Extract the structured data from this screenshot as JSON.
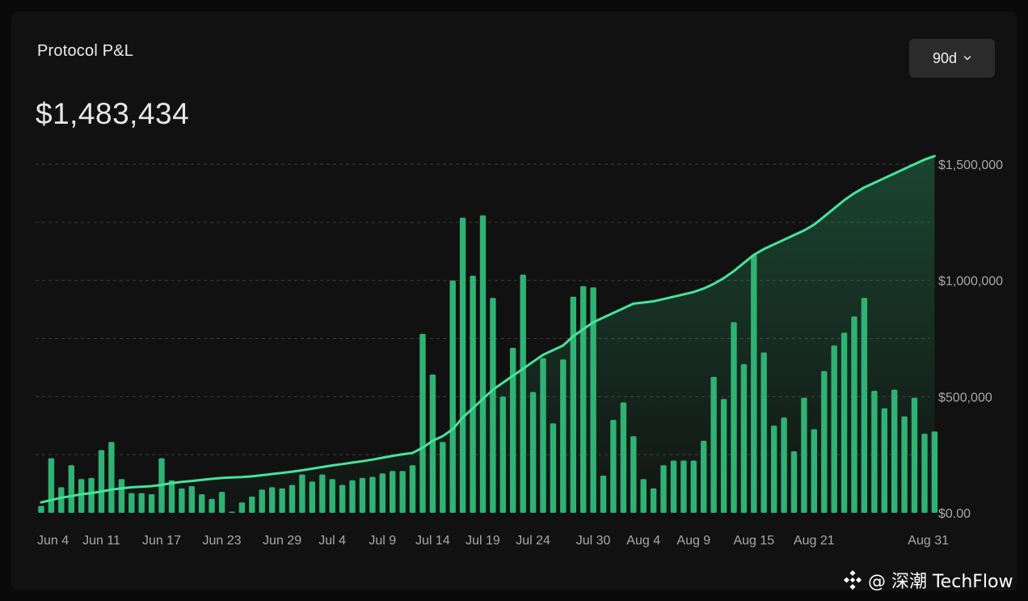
{
  "card": {
    "title": "Protocol P&L",
    "total_value": "$1,483,434",
    "range_button": {
      "label": "90d",
      "icon": "chevron-down-icon"
    }
  },
  "watermark": {
    "text": "@ 深潮 TechFlow",
    "icon": "binance-diamond-logo"
  },
  "colors": {
    "background": "#111111",
    "bar": "#2fb273",
    "line": "#45e39b",
    "grid": "#3a3a3a",
    "button_bg": "#2b2b2b"
  },
  "chart_data": {
    "type": "bar",
    "title": "",
    "xlabel": "",
    "ylabel": "",
    "ylim": [
      0,
      1500000
    ],
    "grid": true,
    "y_axis_position": "right",
    "yticks": [
      {
        "value": 0,
        "label": "$0.00"
      },
      {
        "value": 500000,
        "label": "$500,000"
      },
      {
        "value": 1000000,
        "label": "$1,000,000"
      },
      {
        "value": 1500000,
        "label": "$1,500,000"
      }
    ],
    "xticks": [
      {
        "day": 1,
        "label": "Jun 4"
      },
      {
        "day": 7,
        "label": "Jun 11"
      },
      {
        "day": 13,
        "label": "Jun 17"
      },
      {
        "day": 19,
        "label": "Jun 23"
      },
      {
        "day": 25,
        "label": "Jun 29"
      },
      {
        "day": 30,
        "label": "Jul 4"
      },
      {
        "day": 35,
        "label": "Jul 9"
      },
      {
        "day": 40,
        "label": "Jul 14"
      },
      {
        "day": 45,
        "label": "Jul 19"
      },
      {
        "day": 50,
        "label": "Jul 24"
      },
      {
        "day": 56,
        "label": "Jul 30"
      },
      {
        "day": 61,
        "label": "Aug 4"
      },
      {
        "day": 66,
        "label": "Aug 9"
      },
      {
        "day": 72,
        "label": "Aug 15"
      },
      {
        "day": 78,
        "label": "Aug 21"
      },
      {
        "day": 88,
        "label": "Aug 31"
      }
    ],
    "series": [
      {
        "type": "bar",
        "values": [
          30000,
          235000,
          110000,
          205000,
          145000,
          150000,
          270000,
          305000,
          145000,
          85000,
          85000,
          80000,
          235000,
          140000,
          105000,
          115000,
          80000,
          60000,
          90000,
          5000,
          45000,
          70000,
          100000,
          110000,
          105000,
          120000,
          165000,
          135000,
          165000,
          145000,
          120000,
          140000,
          150000,
          155000,
          170000,
          180000,
          180000,
          205000,
          770000,
          595000,
          305000,
          1000000,
          1270000,
          1020000,
          1280000,
          925000,
          500000,
          710000,
          1025000,
          520000,
          665000,
          385000,
          660000,
          930000,
          975000,
          970000,
          160000,
          400000,
          475000,
          330000,
          145000,
          105000,
          205000,
          225000,
          225000,
          225000,
          310000,
          585000,
          490000,
          820000,
          640000,
          1110000,
          690000,
          375000,
          410000,
          265000,
          495000,
          360000,
          610000,
          720000,
          775000,
          845000,
          925000,
          525000,
          450000,
          530000,
          415000,
          495000,
          340000,
          350000
        ]
      },
      {
        "type": "line",
        "values": [
          45000,
          55000,
          65000,
          72000,
          80000,
          85000,
          92000,
          100000,
          105000,
          110000,
          112000,
          115000,
          120000,
          128000,
          133000,
          137000,
          142000,
          146000,
          150000,
          152000,
          154000,
          157000,
          162000,
          167000,
          172000,
          177000,
          183000,
          190000,
          197000,
          204000,
          210000,
          216000,
          222000,
          229000,
          237000,
          245000,
          252000,
          258000,
          280000,
          310000,
          330000,
          360000,
          410000,
          450000,
          490000,
          530000,
          560000,
          590000,
          620000,
          650000,
          680000,
          700000,
          720000,
          760000,
          790000,
          820000,
          840000,
          860000,
          880000,
          900000,
          905000,
          910000,
          920000,
          930000,
          940000,
          950000,
          965000,
          985000,
          1010000,
          1040000,
          1075000,
          1110000,
          1135000,
          1155000,
          1175000,
          1195000,
          1215000,
          1240000,
          1275000,
          1310000,
          1345000,
          1375000,
          1400000,
          1420000,
          1440000,
          1460000,
          1480000,
          1500000,
          1520000,
          1535000
        ]
      }
    ]
  }
}
